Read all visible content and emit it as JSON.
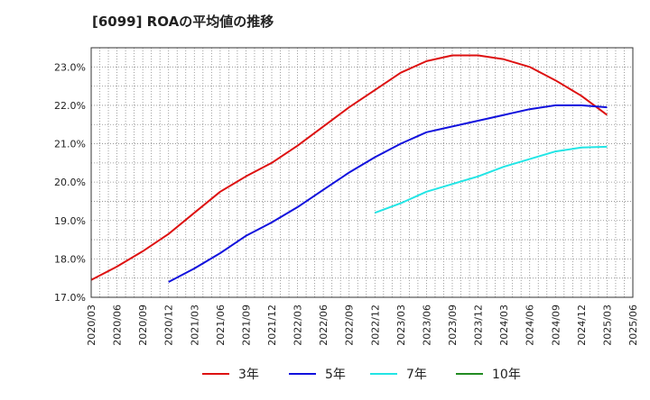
{
  "chart_data": {
    "type": "line",
    "title": "[6099]  ROAの平均値の推移",
    "xlabel": "",
    "ylabel": "",
    "ylim": [
      17.0,
      23.5
    ],
    "yticks": [
      17.0,
      18.0,
      19.0,
      20.0,
      21.0,
      22.0,
      23.0
    ],
    "ytick_labels": [
      "17.0%",
      "18.0%",
      "19.0%",
      "20.0%",
      "21.0%",
      "22.0%",
      "23.0%"
    ],
    "x_categories": [
      "2020/03",
      "2020/06",
      "2020/09",
      "2020/12",
      "2021/03",
      "2021/06",
      "2021/09",
      "2021/12",
      "2022/03",
      "2022/06",
      "2022/09",
      "2022/12",
      "2023/03",
      "2023/06",
      "2023/09",
      "2023/12",
      "2024/03",
      "2024/06",
      "2024/09",
      "2024/12",
      "2025/03",
      "2025/06"
    ],
    "grid": true,
    "legend_position": "bottom",
    "series": [
      {
        "name": "3年",
        "color": "#dd1111",
        "x": [
          "2020/03",
          "2020/06",
          "2020/09",
          "2020/12",
          "2021/03",
          "2021/06",
          "2021/09",
          "2021/12",
          "2022/03",
          "2022/06",
          "2022/09",
          "2022/12",
          "2023/03",
          "2023/06",
          "2023/09",
          "2023/12",
          "2024/03",
          "2024/06",
          "2024/09",
          "2024/12",
          "2025/03"
        ],
        "values": [
          17.45,
          17.8,
          18.2,
          18.65,
          19.2,
          19.75,
          20.15,
          20.5,
          20.95,
          21.45,
          21.95,
          22.4,
          22.85,
          23.15,
          23.3,
          23.3,
          23.2,
          23.0,
          22.65,
          22.25,
          21.75
        ]
      },
      {
        "name": "5年",
        "color": "#1111dd",
        "x": [
          "2020/12",
          "2021/03",
          "2021/06",
          "2021/09",
          "2021/12",
          "2022/03",
          "2022/06",
          "2022/09",
          "2022/12",
          "2023/03",
          "2023/06",
          "2023/09",
          "2023/12",
          "2024/03",
          "2024/06",
          "2024/09",
          "2024/12",
          "2025/03"
        ],
        "values": [
          17.4,
          17.75,
          18.15,
          18.6,
          18.95,
          19.35,
          19.8,
          20.25,
          20.65,
          21.0,
          21.3,
          21.45,
          21.6,
          21.75,
          21.9,
          22.0,
          22.0,
          21.95
        ]
      },
      {
        "name": "7年",
        "color": "#22e5e5",
        "x": [
          "2022/12",
          "2023/03",
          "2023/06",
          "2023/09",
          "2023/12",
          "2024/03",
          "2024/06",
          "2024/09",
          "2024/12",
          "2025/03"
        ],
        "values": [
          19.2,
          19.45,
          19.75,
          19.95,
          20.15,
          20.4,
          20.6,
          20.8,
          20.9,
          20.92
        ]
      },
      {
        "name": "10年",
        "color": "#228b22",
        "x": [],
        "values": []
      }
    ]
  }
}
